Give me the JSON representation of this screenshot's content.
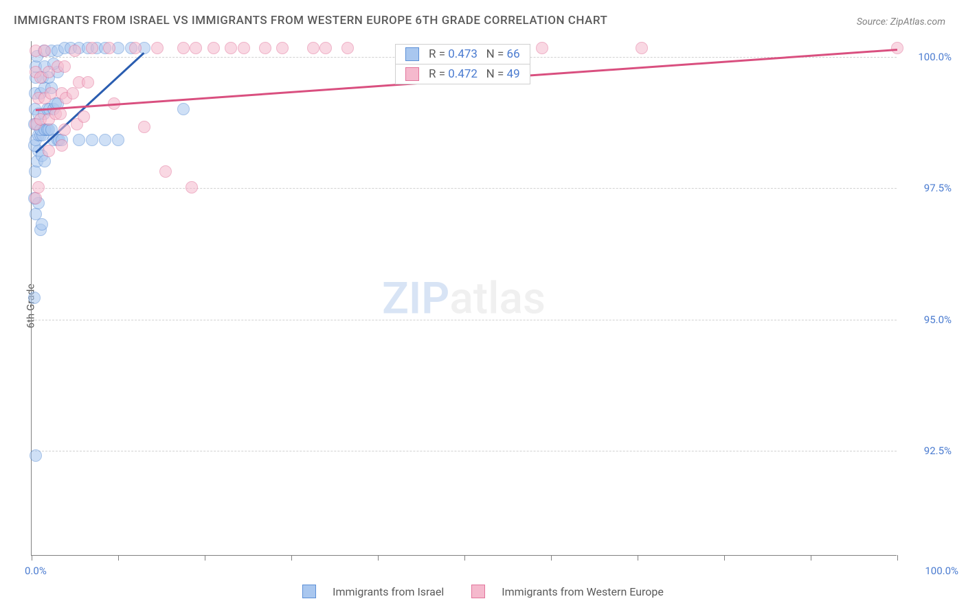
{
  "title": "IMMIGRANTS FROM ISRAEL VS IMMIGRANTS FROM WESTERN EUROPE 6TH GRADE CORRELATION CHART",
  "source": "Source: ZipAtlas.com",
  "watermark_zip": "ZIP",
  "watermark_atlas": "atlas",
  "ylabel": "6th Grade",
  "chart": {
    "type": "scatter",
    "background_color": "#ffffff",
    "grid_color": "#d0d0d0",
    "axis_color": "#808080",
    "marker_radius": 9,
    "marker_opacity": 0.55,
    "xlim": [
      0,
      100
    ],
    "ylim": [
      90.5,
      100.3
    ],
    "x_ticks": [
      0,
      10,
      20,
      30,
      40,
      50,
      60,
      70,
      80,
      90,
      100
    ],
    "x_min_label": "0.0%",
    "x_max_label": "100.0%",
    "y_ticks": [
      {
        "v": 92.5,
        "label": "92.5%"
      },
      {
        "v": 95.0,
        "label": "95.0%"
      },
      {
        "v": 97.5,
        "label": "97.5%"
      },
      {
        "v": 100.0,
        "label": "100.0%"
      }
    ],
    "series": [
      {
        "name": "Immigrants from Israel",
        "fill": "#a9c7ef",
        "stroke": "#5b8fd6",
        "trend_color": "#2a5db0",
        "trend": {
          "x1": 0.5,
          "y1": 98.2,
          "x2": 13,
          "y2": 100.1
        },
        "r": "0.473",
        "n": "66",
        "points": [
          [
            0.5,
            92.4
          ],
          [
            0.3,
            95.4
          ],
          [
            0.5,
            97.0
          ],
          [
            0.8,
            97.2
          ],
          [
            1.0,
            96.7
          ],
          [
            1.2,
            96.8
          ],
          [
            0.3,
            97.3
          ],
          [
            0.4,
            97.8
          ],
          [
            0.6,
            98.0
          ],
          [
            0.8,
            98.2
          ],
          [
            1.2,
            98.1
          ],
          [
            1.5,
            98.0
          ],
          [
            0.3,
            98.3
          ],
          [
            0.5,
            98.4
          ],
          [
            0.8,
            98.5
          ],
          [
            1.0,
            98.5
          ],
          [
            1.3,
            98.5
          ],
          [
            1.6,
            98.6
          ],
          [
            0.3,
            98.7
          ],
          [
            0.6,
            98.7
          ],
          [
            1.0,
            98.6
          ],
          [
            1.5,
            98.6
          ],
          [
            1.8,
            98.6
          ],
          [
            2.0,
            98.6
          ],
          [
            2.3,
            98.6
          ],
          [
            2.5,
            98.4
          ],
          [
            3.0,
            98.4
          ],
          [
            3.2,
            98.4
          ],
          [
            3.5,
            98.4
          ],
          [
            5.5,
            98.4
          ],
          [
            7.0,
            98.4
          ],
          [
            8.5,
            98.4
          ],
          [
            10.0,
            98.4
          ],
          [
            0.4,
            99.0
          ],
          [
            0.8,
            98.9
          ],
          [
            1.4,
            98.9
          ],
          [
            1.8,
            99.0
          ],
          [
            2.1,
            99.0
          ],
          [
            2.5,
            99.0
          ],
          [
            2.8,
            99.1
          ],
          [
            3.0,
            99.1
          ],
          [
            0.4,
            99.3
          ],
          [
            1.0,
            99.3
          ],
          [
            1.5,
            99.4
          ],
          [
            2.3,
            99.4
          ],
          [
            0.5,
            99.6
          ],
          [
            1.3,
            99.6
          ],
          [
            2.0,
            99.6
          ],
          [
            3.0,
            99.7
          ],
          [
            0.5,
            99.8
          ],
          [
            1.5,
            99.8
          ],
          [
            2.5,
            99.85
          ],
          [
            0.6,
            100.0
          ],
          [
            1.4,
            100.1
          ],
          [
            2.3,
            100.1
          ],
          [
            3.0,
            100.1
          ],
          [
            3.8,
            100.15
          ],
          [
            4.5,
            100.15
          ],
          [
            5.5,
            100.15
          ],
          [
            6.5,
            100.15
          ],
          [
            7.5,
            100.15
          ],
          [
            8.5,
            100.15
          ],
          [
            10.0,
            100.15
          ],
          [
            11.5,
            100.15
          ],
          [
            13.0,
            100.15
          ],
          [
            17.5,
            99.0
          ]
        ]
      },
      {
        "name": "Immigrants from Western Europe",
        "fill": "#f5b9cd",
        "stroke": "#e2749b",
        "trend_color": "#d94f7f",
        "trend": {
          "x1": 0.5,
          "y1": 99.0,
          "x2": 100,
          "y2": 100.15
        },
        "r": "0.472",
        "n": "49",
        "points": [
          [
            0.5,
            97.3
          ],
          [
            0.8,
            97.5
          ],
          [
            2.0,
            98.2
          ],
          [
            3.5,
            98.3
          ],
          [
            3.8,
            98.6
          ],
          [
            0.5,
            98.7
          ],
          [
            1.0,
            98.8
          ],
          [
            2.0,
            98.8
          ],
          [
            2.8,
            98.9
          ],
          [
            3.3,
            98.9
          ],
          [
            5.2,
            98.7
          ],
          [
            6.0,
            98.85
          ],
          [
            0.8,
            99.2
          ],
          [
            1.5,
            99.2
          ],
          [
            2.2,
            99.3
          ],
          [
            3.5,
            99.3
          ],
          [
            4.0,
            99.2
          ],
          [
            4.8,
            99.3
          ],
          [
            5.5,
            99.5
          ],
          [
            6.5,
            99.5
          ],
          [
            0.5,
            99.7
          ],
          [
            1.0,
            99.6
          ],
          [
            2.0,
            99.7
          ],
          [
            3.0,
            99.8
          ],
          [
            3.8,
            99.8
          ],
          [
            13.0,
            98.65
          ],
          [
            15.5,
            97.8
          ],
          [
            18.5,
            97.5
          ],
          [
            9.5,
            99.1
          ],
          [
            0.5,
            100.1
          ],
          [
            1.5,
            100.1
          ],
          [
            5.0,
            100.1
          ],
          [
            7.0,
            100.15
          ],
          [
            9.0,
            100.15
          ],
          [
            12.0,
            100.15
          ],
          [
            14.5,
            100.15
          ],
          [
            17.5,
            100.15
          ],
          [
            19.0,
            100.15
          ],
          [
            21.0,
            100.15
          ],
          [
            23.0,
            100.15
          ],
          [
            24.5,
            100.15
          ],
          [
            27.0,
            100.15
          ],
          [
            29.0,
            100.15
          ],
          [
            32.5,
            100.15
          ],
          [
            34.0,
            100.15
          ],
          [
            36.5,
            100.15
          ],
          [
            59.0,
            100.15
          ],
          [
            70.5,
            100.15
          ],
          [
            100.0,
            100.15
          ]
        ]
      }
    ]
  },
  "stats_labels": {
    "r": "R =",
    "n": "N ="
  },
  "legend": {
    "s1": "Immigrants from Israel",
    "s2": "Immigrants from Western Europe"
  }
}
